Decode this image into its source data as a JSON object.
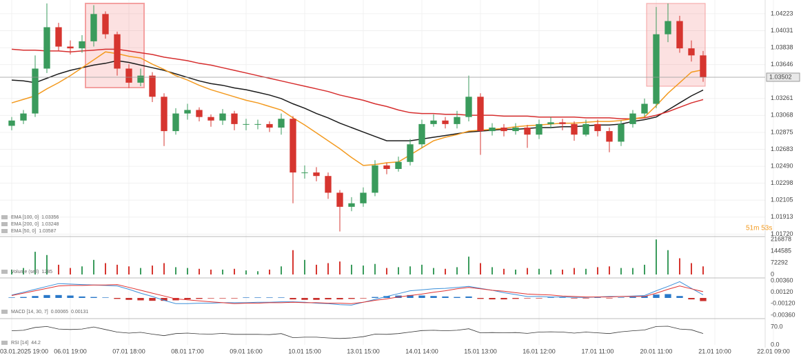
{
  "chart_data": [
    {
      "type": "candlestick",
      "categories": [
        "03.01.2025 19:00",
        null,
        null,
        null,
        null,
        "06.01 19:00",
        null,
        null,
        null,
        null,
        "07.01 18:00",
        null,
        null,
        null,
        null,
        "08.01 17:00",
        null,
        null,
        null,
        null,
        "09.01 16:00",
        null,
        null,
        null,
        null,
        "10.01 15:00",
        null,
        null,
        null,
        null,
        "13.01 15:00",
        null,
        null,
        null,
        null,
        "14.01 14:00",
        null,
        null,
        null,
        null,
        "15.01 13:00",
        null,
        null,
        null,
        null,
        "16.01 12:00",
        null,
        null,
        null,
        null,
        "17.01 11:00",
        null,
        null,
        null,
        null,
        "20.01 11:00",
        null,
        null,
        null,
        null,
        "21.01 10:00",
        null,
        null,
        null,
        null,
        "22.01 09:00"
      ],
      "open": [
        1.0295,
        1.0301,
        1.0309,
        1.036,
        1.0407,
        1.0385,
        1.0383,
        1.0391,
        1.0422,
        1.0399,
        1.036,
        1.0344,
        1.0352,
        1.0328,
        1.0289,
        1.0309,
        1.0313,
        1.0305,
        1.0301,
        1.0309,
        1.0297,
        1.0297,
        1.0297,
        1.0293,
        1.0303,
        1.0242,
        1.0242,
        1.0238,
        1.0219,
        1.0203,
        1.0207,
        1.0219,
        1.025,
        1.0246,
        1.0254,
        1.0274,
        1.0297,
        1.0301,
        1.0297,
        1.0305,
        1.0328,
        1.0289,
        1.0293,
        1.0289,
        1.0293,
        1.0285,
        1.0297,
        1.0299,
        1.0297,
        1.0285,
        1.0297,
        1.0289,
        1.0277,
        1.0297,
        1.0309,
        1.032,
        1.0399,
        1.0414,
        1.0383,
        1.0375,
        null,
        null,
        null,
        null,
        null,
        null
      ],
      "high": [
        1.0305,
        1.0313,
        1.0375,
        1.0434,
        1.0412,
        1.0392,
        1.0398,
        1.0432,
        1.0425,
        1.0402,
        1.0365,
        1.036,
        1.0356,
        1.0332,
        1.0315,
        1.032,
        1.0316,
        1.0308,
        1.0314,
        1.0312,
        1.0303,
        1.0302,
        1.03,
        1.0309,
        1.0306,
        1.025,
        1.0248,
        1.0242,
        1.0222,
        1.0214,
        1.0225,
        1.0256,
        1.0253,
        1.026,
        1.028,
        1.0302,
        1.0308,
        1.0305,
        1.0312,
        1.0352,
        1.0332,
        1.0298,
        1.0297,
        1.0298,
        1.0296,
        1.0302,
        1.0305,
        1.0303,
        1.03,
        1.0302,
        1.0302,
        1.0293,
        1.0301,
        1.0313,
        1.0326,
        1.043,
        1.0434,
        1.042,
        1.0392,
        1.038,
        null,
        null,
        null,
        null,
        null,
        null
      ],
      "low": [
        1.029,
        1.0297,
        1.0305,
        1.0355,
        1.038,
        1.0376,
        1.0378,
        1.0385,
        1.0394,
        1.0352,
        1.0338,
        1.034,
        1.0322,
        1.0272,
        1.0285,
        1.0302,
        1.03,
        1.0294,
        1.0296,
        1.029,
        1.029,
        1.0291,
        1.0288,
        1.0285,
        1.0207,
        1.0235,
        1.0232,
        1.0212,
        1.0175,
        1.0198,
        1.0203,
        1.0215,
        1.024,
        1.0243,
        1.025,
        1.027,
        1.0294,
        1.0292,
        1.0292,
        1.03,
        1.0262,
        1.0284,
        1.0283,
        1.0285,
        1.027,
        1.028,
        1.0292,
        1.029,
        1.0278,
        1.0283,
        1.0283,
        1.0265,
        1.0272,
        1.0293,
        1.0305,
        1.0315,
        1.039,
        1.0378,
        1.0368,
        1.0345,
        null,
        null,
        null,
        null,
        null,
        null
      ],
      "close": [
        1.0301,
        1.0309,
        1.036,
        1.0407,
        1.0385,
        1.0383,
        1.0391,
        1.0422,
        1.0399,
        1.036,
        1.0344,
        1.0352,
        1.0328,
        1.0289,
        1.0309,
        1.0313,
        1.0305,
        1.0301,
        1.0309,
        1.0297,
        1.0297,
        1.0297,
        1.0293,
        1.0303,
        1.0242,
        1.0242,
        1.0238,
        1.0219,
        1.0203,
        1.0207,
        1.0219,
        1.025,
        1.0246,
        1.0254,
        1.0274,
        1.0297,
        1.0301,
        1.0297,
        1.0305,
        1.0328,
        1.0289,
        1.0293,
        1.0289,
        1.0293,
        1.0285,
        1.0297,
        1.0299,
        1.0297,
        1.0285,
        1.0297,
        1.0289,
        1.0277,
        1.0297,
        1.0309,
        1.032,
        1.0399,
        1.0414,
        1.0383,
        1.0375,
        1.03502,
        null,
        null,
        null,
        null,
        null,
        null
      ],
      "up_color": "#3a9b5c",
      "down_color": "#d6352f",
      "series": [
        {
          "name": "EMA [100, 0]",
          "color": "#1a1a1a",
          "values": [
            1.0347,
            1.0346,
            1.0344,
            1.0349,
            1.0354,
            1.0358,
            1.0361,
            1.0364,
            1.0366,
            1.0369,
            1.0367,
            1.0364,
            1.0361,
            1.0358,
            1.0354,
            1.035,
            1.0346,
            1.0343,
            1.0341,
            1.0338,
            1.0336,
            1.0333,
            1.033,
            1.0326,
            1.032,
            1.0315,
            1.0309,
            1.0304,
            1.0298,
            1.0293,
            1.0288,
            1.0283,
            1.0278,
            1.0278,
            1.0278,
            1.028,
            1.0282,
            1.0284,
            1.0286,
            1.0288,
            1.0289,
            1.029,
            1.0291,
            1.0291,
            1.0292,
            1.0293,
            1.0293,
            1.0294,
            1.0294,
            1.0295,
            1.0296,
            1.0296,
            1.0297,
            1.03,
            1.0302,
            1.0305,
            1.0313,
            1.0321,
            1.0329,
            1.03356,
            null,
            null,
            null,
            null,
            null,
            null
          ]
        },
        {
          "name": "EMA [200, 0]",
          "color": "#d62d2d",
          "values": [
            1.0382,
            1.0381,
            1.0381,
            1.038,
            1.038,
            1.0379,
            1.038,
            1.0381,
            1.0382,
            1.0382,
            1.038,
            1.0378,
            1.0376,
            1.0373,
            1.0371,
            1.0369,
            1.0366,
            1.0364,
            1.0361,
            1.0358,
            1.0355,
            1.0352,
            1.0349,
            1.0346,
            1.0343,
            1.034,
            1.0337,
            1.0334,
            1.033,
            1.0327,
            1.0324,
            1.032,
            1.0317,
            1.0313,
            1.031,
            1.0309,
            1.0309,
            1.0308,
            1.0308,
            1.0307,
            1.0307,
            1.0307,
            1.0306,
            1.0306,
            1.0306,
            1.0305,
            1.0305,
            1.0305,
            1.0305,
            1.0304,
            1.0304,
            1.0304,
            1.0303,
            1.0303,
            1.0304,
            1.0307,
            1.0311,
            1.0316,
            1.0321,
            1.03248,
            null,
            null,
            null,
            null,
            null,
            null
          ]
        },
        {
          "name": "EMA [50, 0]",
          "color": "#f39a1f",
          "values": [
            1.0321,
            1.0325,
            1.0329,
            1.0337,
            1.0344,
            1.0352,
            1.0361,
            1.037,
            1.0379,
            1.0377,
            1.0374,
            1.0372,
            1.0365,
            1.0359,
            1.0352,
            1.0347,
            1.0341,
            1.0336,
            1.0332,
            1.0328,
            1.0324,
            1.0321,
            1.0317,
            1.0313,
            1.0304,
            1.0296,
            1.0287,
            1.0278,
            1.0269,
            1.0259,
            1.025,
            1.0251,
            1.0253,
            1.0254,
            1.0262,
            1.027,
            1.0278,
            1.0282,
            1.0285,
            1.0289,
            1.029,
            1.0291,
            1.0292,
            1.0294,
            1.0295,
            1.0296,
            1.0297,
            1.0298,
            1.0298,
            1.0299,
            1.03,
            1.03,
            1.0301,
            1.0303,
            1.0305,
            1.0318,
            1.0332,
            1.0344,
            1.0356,
            1.03587,
            null,
            null,
            null,
            null,
            null,
            null
          ]
        }
      ],
      "ylim": [
        1.017,
        1.0434
      ],
      "yticks": [
        {
          "value": 1.0172,
          "label": "1.01720"
        },
        1.01913,
        1.02105,
        1.02298,
        {
          "value": 1.0249,
          "label": "1.02490"
        },
        1.02683,
        1.02875,
        1.03068,
        1.03261,
        1.03646,
        1.03838,
        1.04031,
        1.04223
      ],
      "last_price": 1.03502,
      "countdown": "51m 53s",
      "grid": true
    },
    {
      "type": "bar",
      "name": "Volume (sell)",
      "legend_value": 1285,
      "values": [
        30000,
        40000,
        140000,
        120000,
        60000,
        40000,
        50000,
        90000,
        70000,
        60000,
        50000,
        40000,
        55000,
        70000,
        45000,
        40000,
        35000,
        30000,
        30000,
        35000,
        25000,
        20000,
        30000,
        50000,
        150000,
        90000,
        60000,
        70000,
        80000,
        60000,
        55000,
        65000,
        40000,
        45000,
        50000,
        60000,
        40000,
        35000,
        45000,
        110000,
        70000,
        45000,
        35000,
        30000,
        40000,
        35000,
        30000,
        30000,
        40000,
        35000,
        45000,
        50000,
        40000,
        40000,
        60000,
        216000,
        150000,
        100000,
        70000,
        50000,
        null,
        null,
        null,
        null,
        null,
        null
      ],
      "ylim": [
        0,
        216878
      ],
      "yticks": [
        0,
        72292,
        144585,
        216878
      ]
    },
    {
      "type": "macd",
      "name": "MACD [14, 30, 7]",
      "pos_color": "#2a79c9",
      "neg_color": "#c9302c",
      "histogram": [
        0.0001,
        0.0002,
        0.0004,
        0.0006,
        0.0006,
        0.0005,
        0.0003,
        0.0002,
        0.0001,
        -0.0002,
        -0.0004,
        -0.0005,
        -0.0006,
        -0.0006,
        -0.0005,
        -0.0003,
        -0.0002,
        -0.0001,
        -0.0001,
        -0.0001,
        0.0001,
        0.0001,
        0.0001,
        0.0001,
        -0.0003,
        -0.0004,
        -0.0004,
        -0.0003,
        -0.0003,
        -0.0002,
        -0.0001,
        0.0002,
        0.0004,
        0.0005,
        0.0006,
        0.0005,
        0.0004,
        0.0003,
        0.0002,
        0.0003,
        -0.0002,
        -0.0003,
        -0.0003,
        -0.0002,
        -0.0001,
        -0.0001,
        0.0001,
        0.0001,
        -0.0001,
        -0.0001,
        0.0001,
        -0.0001,
        0.0001,
        0.0002,
        0.0004,
        0.0007,
        0.0008,
        0.0004,
        -0.0003,
        -0.00066,
        null,
        null,
        null,
        null,
        null,
        null
      ],
      "series": [
        {
          "color": "#3b8fd9",
          "values": [
            0.0006,
            0.0012,
            0.0018,
            0.0024,
            0.003,
            0.0029,
            0.0028,
            0.0027,
            0.0026,
            0.0025,
            0.0018,
            0.001,
            0.0003,
            -0.0005,
            -0.0012,
            -0.0012,
            -0.0011,
            -0.0011,
            -0.001,
            -0.001,
            -0.001,
            -0.0009,
            -0.0009,
            -0.0008,
            -0.0008,
            -0.0009,
            -0.0011,
            -0.0012,
            -0.0014,
            -0.0015,
            -0.0009,
            -0.0003,
            0.0003,
            0.0009,
            0.0015,
            0.0017,
            0.0019,
            0.002,
            0.0022,
            0.0024,
            0.002,
            0.0016,
            0.0011,
            0.0007,
            0.0003,
            0.0003,
            0.0002,
            0.0002,
            0.0001,
            0.0001,
            0.0002,
            0.0003,
            0.0003,
            0.0004,
            0.0005,
            0.0015,
            0.0024,
            0.0034,
            0.002,
            0.00065,
            null,
            null,
            null,
            null,
            null,
            null
          ]
        },
        {
          "color": "#e0312f",
          "values": [
            0.0005,
            0.001,
            0.0015,
            0.002,
            0.0025,
            0.0026,
            0.0026,
            0.0027,
            0.0027,
            0.0028,
            0.0022,
            0.0016,
            0.001,
            0.0004,
            -0.0002,
            -0.0004,
            -0.0006,
            -0.0008,
            -0.001,
            -0.0012,
            -0.0011,
            -0.0011,
            -0.001,
            -0.001,
            -0.0009,
            -0.001,
            -0.001,
            -0.0011,
            -0.0011,
            -0.0012,
            -0.0009,
            -0.0005,
            -0.0002,
            0.0002,
            0.0005,
            0.0008,
            0.0012,
            0.0015,
            0.0019,
            0.0022,
            0.0019,
            0.0016,
            0.0014,
            0.0011,
            0.0008,
            0.0007,
            0.0006,
            0.0004,
            0.0003,
            0.0002,
            0.0002,
            0.0002,
            0.0003,
            0.0003,
            0.0003,
            0.001,
            0.0018,
            0.0025,
            0.0019,
            0.00131,
            null,
            null,
            null,
            null,
            null,
            null
          ]
        }
      ],
      "ylim": [
        -0.0036,
        0.0036
      ],
      "yticks": [
        {
          "value": -0.0036,
          "label": "-0.00360"
        },
        {
          "value": -0.0012,
          "label": "-0.00120"
        },
        {
          "value": 0.0012,
          "label": "0.00120"
        },
        {
          "value": 0.0036,
          "label": "0.00360"
        }
      ]
    },
    {
      "type": "line",
      "name": "RSI [14]",
      "color": "#333333",
      "values": [
        55,
        57,
        68,
        72,
        62,
        60,
        62,
        70,
        60,
        50,
        46,
        49,
        42,
        36,
        44,
        46,
        43,
        42,
        45,
        41,
        41,
        41,
        40,
        44,
        28,
        30,
        30,
        27,
        25,
        27,
        32,
        42,
        41,
        44,
        50,
        56,
        57,
        55,
        57,
        63,
        47,
        48,
        47,
        48,
        45,
        50,
        51,
        50,
        46,
        50,
        47,
        44,
        51,
        55,
        58,
        72,
        73,
        62,
        59,
        44.2,
        null,
        null,
        null,
        null,
        null,
        null
      ],
      "ylim": [
        0,
        100
      ],
      "yticks": [
        {
          "value": 0,
          "label": "0.0"
        },
        {
          "value": 70,
          "label": "70.0"
        }
      ]
    }
  ]
}
